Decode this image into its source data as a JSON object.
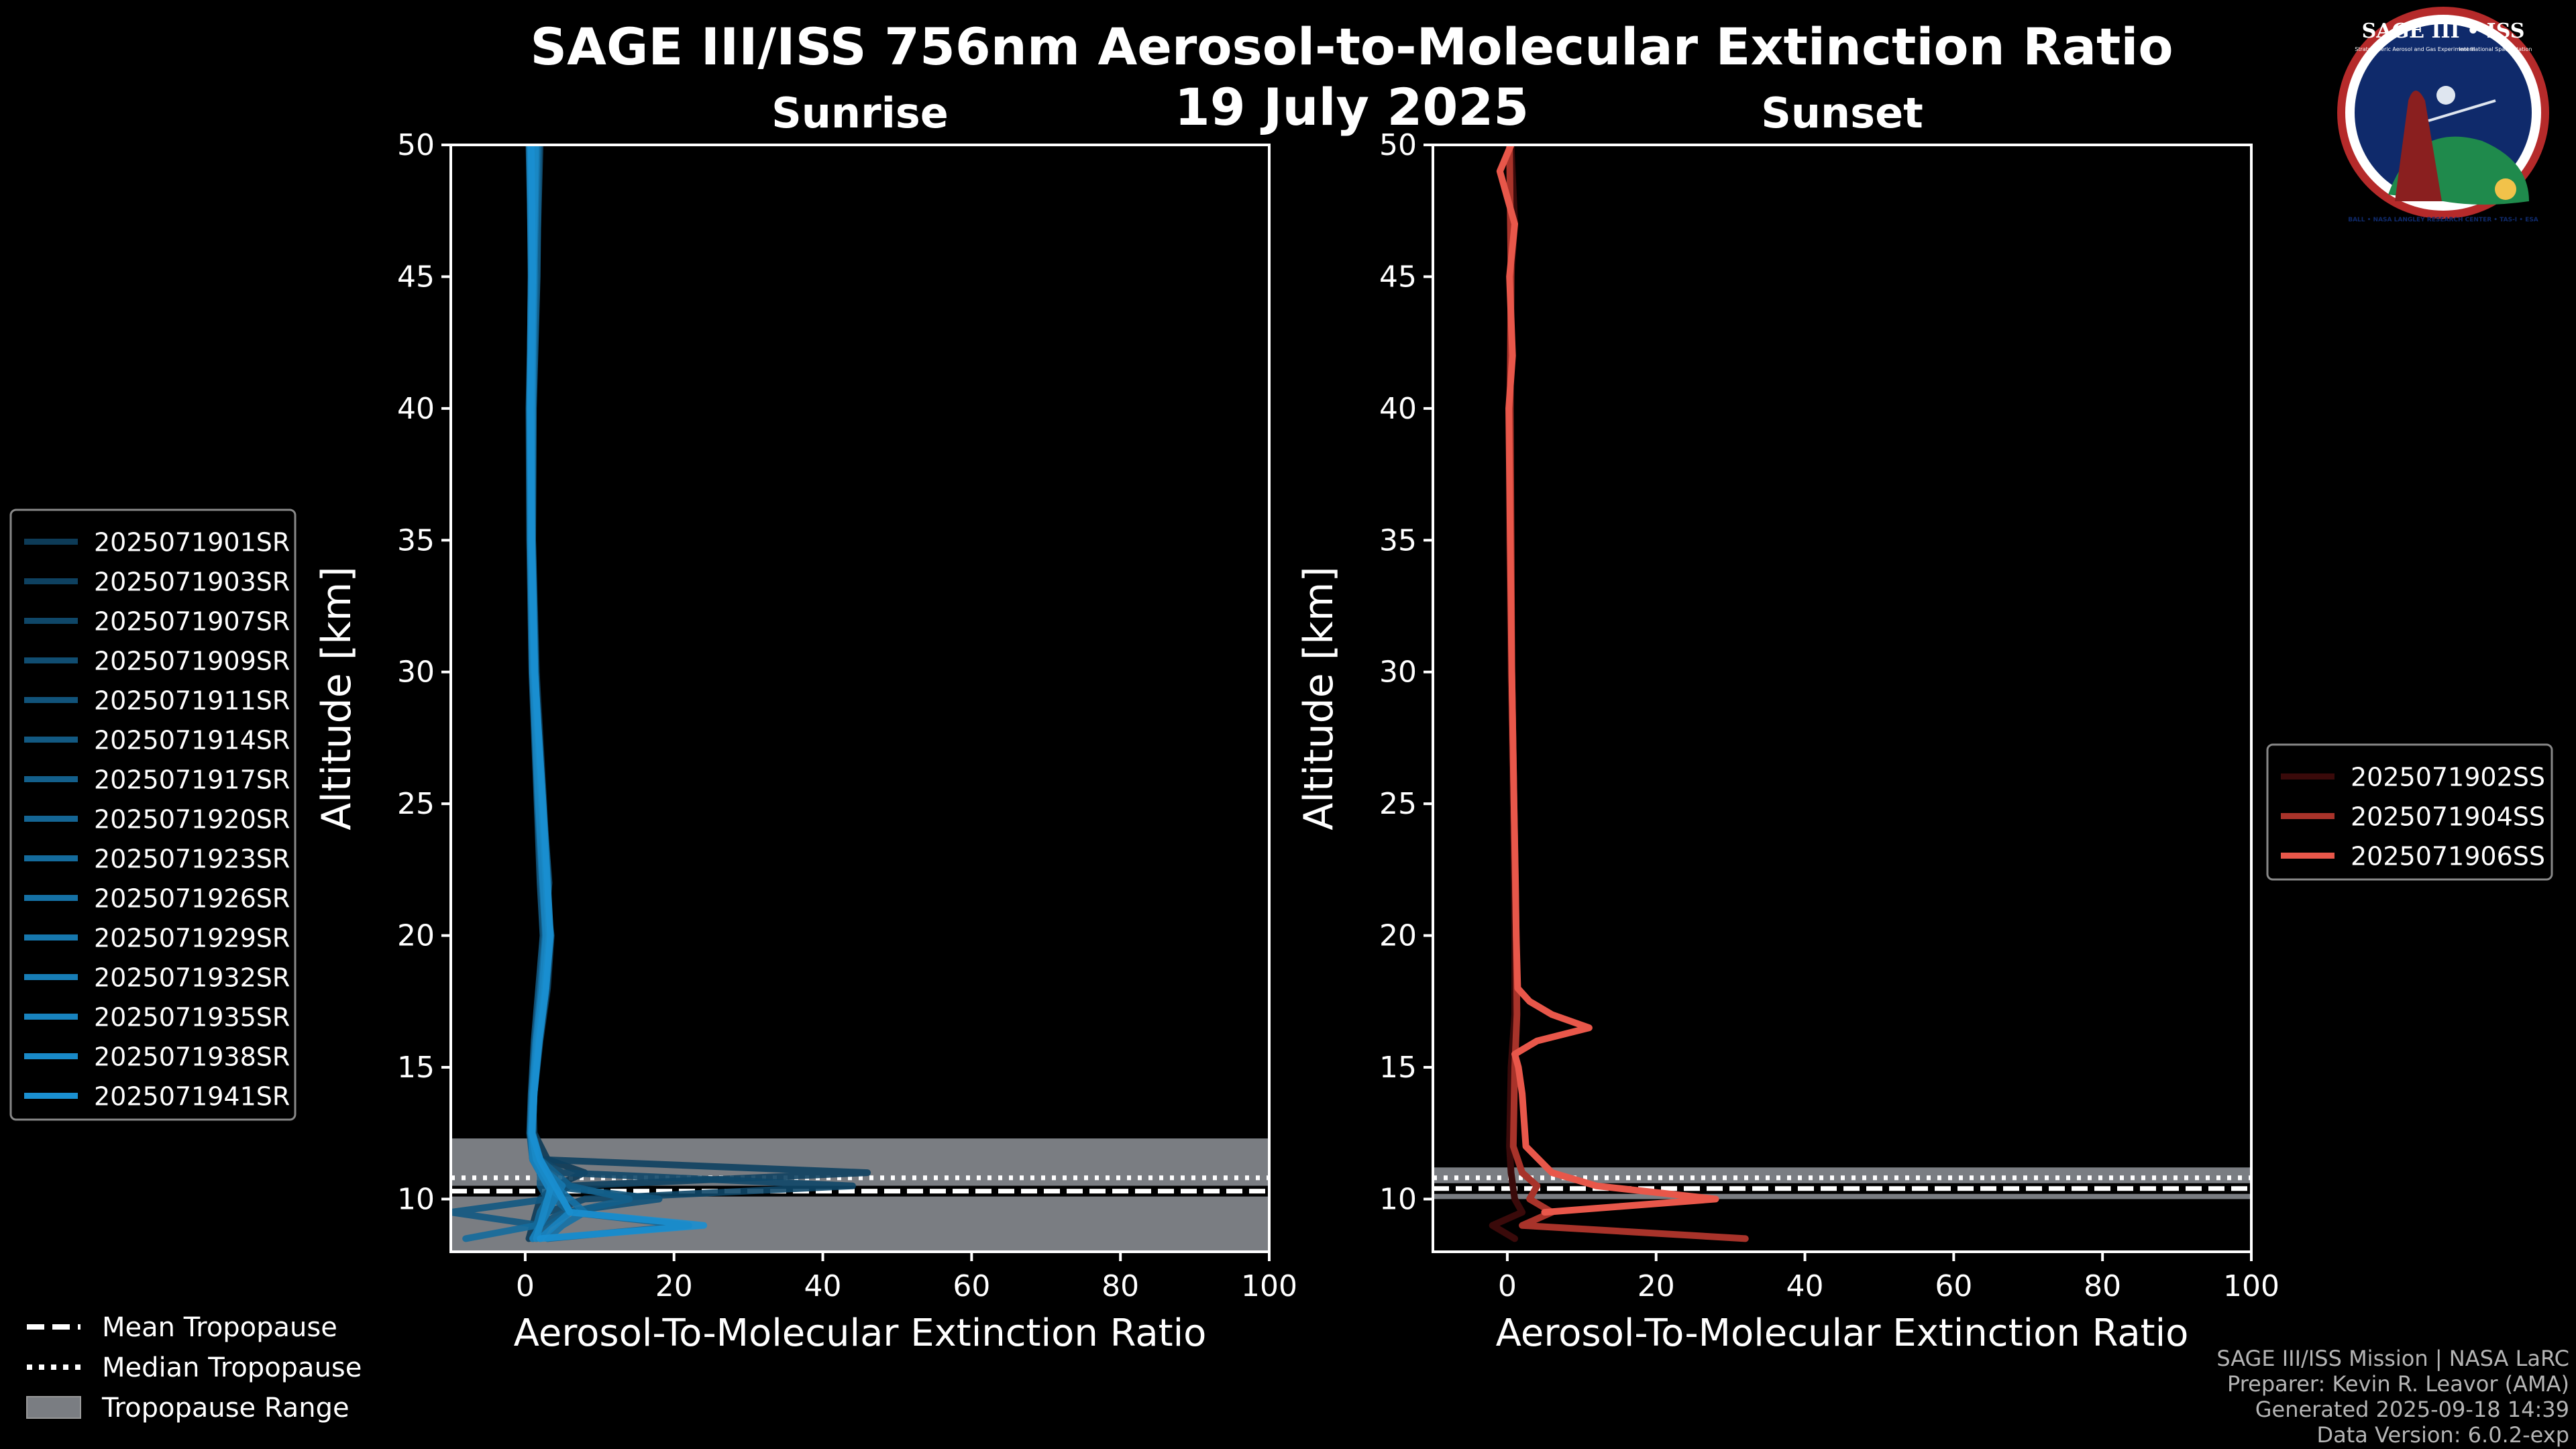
{
  "title_line1": "SAGE III/ISS 756nm Aerosol-to-Molecular Extinction Ratio",
  "title_line2": "19 July 2025",
  "logo": {
    "text_top": "SAGE III • ISS",
    "text_top_small": "Stratospheric Aerosol and Gas Experiment III",
    "text_side": "International Space Station",
    "ring_text": "BALL • NASA LANGLEY RESEARCH CENTER • TAS-I • ESA"
  },
  "footer": {
    "line1": "SAGE III/ISS Mission | NASA LaRC",
    "line2": "Preparer: Kevin R. Leavor (AMA)",
    "line3": "Generated 2025-09-18 14:39",
    "line4": "Data Version: 6.0.2-exp"
  },
  "bottom_legend": {
    "mean": "Mean Tropopause",
    "median": "Median Tropopause",
    "range": "Tropopause Range"
  },
  "colors": {
    "sunrise_dark": "#0d3b57",
    "sunrise_light": "#1a8fd0",
    "sunset": [
      "#3a0a0a",
      "#a8332a",
      "#e8574a"
    ],
    "tropopause_band": "#7a7d82"
  },
  "chart_data": [
    {
      "type": "line",
      "title": "Sunrise",
      "xlabel": "Aerosol-To-Molecular Extinction Ratio",
      "ylabel": "Altitude [km]",
      "xlim": [
        -10,
        100
      ],
      "ylim": [
        8,
        50
      ],
      "xticks": [
        0,
        20,
        40,
        60,
        80,
        100
      ],
      "yticks": [
        10,
        15,
        20,
        25,
        30,
        35,
        40,
        45,
        50
      ],
      "tropopause": {
        "mean": 10.3,
        "median": 10.5,
        "range": [
          8,
          12.3
        ]
      },
      "series": [
        {
          "name": "2025071901SR",
          "altitude": [
            50,
            45,
            40,
            35,
            30,
            25,
            22,
            20,
            18,
            16,
            14,
            12.5,
            11.5,
            11,
            10.5,
            10,
            9.5,
            9,
            8.5
          ],
          "ratio": [
            1.5,
            1.2,
            0.8,
            1.0,
            1.5,
            2.5,
            3.0,
            3.2,
            2.5,
            1.5,
            1.0,
            1.2,
            3,
            8,
            4,
            2,
            1.5,
            1,
            0.5
          ]
        },
        {
          "name": "2025071903SR",
          "altitude": [
            50,
            45,
            40,
            35,
            30,
            25,
            22,
            20,
            18,
            16,
            14,
            12.5,
            11.5,
            11,
            10.5,
            10,
            9.5,
            9,
            8.5
          ],
          "ratio": [
            0.8,
            1.0,
            0.7,
            0.9,
            1.2,
            2.0,
            2.5,
            3.5,
            3.0,
            2.0,
            1.2,
            1.0,
            2,
            46,
            6,
            3,
            2,
            1.5,
            1
          ]
        },
        {
          "name": "2025071907SR",
          "altitude": [
            50,
            45,
            40,
            35,
            30,
            25,
            22,
            20,
            18,
            16,
            14,
            12.5,
            11.5,
            11,
            10.5,
            10,
            9.5,
            9,
            8.5
          ],
          "ratio": [
            2.0,
            1.5,
            1.0,
            0.8,
            1.0,
            1.8,
            2.2,
            2.8,
            2.2,
            1.5,
            1.0,
            0.8,
            2,
            5,
            44,
            8,
            3,
            2,
            1
          ]
        },
        {
          "name": "2025071909SR",
          "altitude": [
            50,
            45,
            40,
            35,
            30,
            25,
            22,
            20,
            18,
            16,
            14,
            12.5,
            11.5,
            11,
            10.5,
            10,
            9.5,
            9,
            8.5
          ],
          "ratio": [
            1.0,
            0.8,
            0.6,
            0.8,
            1.0,
            2.2,
            2.8,
            3.0,
            2.8,
            1.8,
            1.2,
            1.0,
            1.5,
            3,
            5,
            4,
            3,
            2,
            1.5
          ]
        },
        {
          "name": "2025071911SR",
          "altitude": [
            50,
            45,
            40,
            35,
            30,
            25,
            22,
            20,
            18,
            16,
            14,
            12.5,
            11.5,
            11,
            10.5,
            10,
            9.5,
            9,
            8.5
          ],
          "ratio": [
            1.2,
            1.4,
            0.9,
            0.7,
            1.3,
            2.4,
            3.2,
            2.6,
            2.0,
            1.4,
            0.9,
            0.7,
            1,
            2,
            3,
            18,
            5,
            2,
            1
          ]
        },
        {
          "name": "2025071914SR",
          "altitude": [
            50,
            45,
            40,
            35,
            30,
            25,
            22,
            20,
            18,
            16,
            14,
            12.5,
            11.5,
            11,
            10.5,
            10,
            9.5,
            9,
            8.5
          ],
          "ratio": [
            0.5,
            0.9,
            0.5,
            0.6,
            0.9,
            1.6,
            2.0,
            2.4,
            1.8,
            1.2,
            0.8,
            0.6,
            1,
            2,
            2,
            3,
            -10,
            2,
            1
          ]
        },
        {
          "name": "2025071917SR",
          "altitude": [
            50,
            45,
            40,
            35,
            30,
            25,
            22,
            20,
            18,
            16,
            14,
            12.5,
            11.5,
            11,
            10.5,
            10,
            9.5,
            9,
            8.5
          ],
          "ratio": [
            1.8,
            1.6,
            1.1,
            1.0,
            1.4,
            2.0,
            2.6,
            3.4,
            2.6,
            1.6,
            1.1,
            0.9,
            2,
            4,
            6,
            14,
            6,
            3,
            2
          ]
        },
        {
          "name": "2025071920SR",
          "altitude": [
            50,
            45,
            40,
            35,
            30,
            25,
            22,
            20,
            18,
            16,
            14,
            12.5,
            11.5,
            11,
            10.5,
            10,
            9.5,
            9,
            8.5
          ],
          "ratio": [
            0.9,
            1.1,
            0.8,
            0.9,
            1.1,
            1.9,
            2.4,
            2.9,
            2.4,
            1.6,
            1.0,
            0.8,
            1,
            2,
            3,
            4,
            6,
            22,
            3
          ]
        },
        {
          "name": "2025071923SR",
          "altitude": [
            50,
            45,
            40,
            35,
            30,
            25,
            22,
            20,
            18,
            16,
            14,
            12.5,
            11.5,
            11,
            10.5,
            10,
            9.5,
            9,
            8.5
          ],
          "ratio": [
            1.3,
            1.0,
            0.7,
            0.8,
            1.2,
            2.1,
            2.7,
            3.1,
            2.5,
            1.7,
            1.1,
            0.9,
            2,
            3,
            4,
            3,
            2,
            1.5,
            -8
          ]
        },
        {
          "name": "2025071926SR",
          "altitude": [
            50,
            45,
            40,
            35,
            30,
            25,
            22,
            20,
            18,
            16,
            14,
            12.5,
            11.5,
            11,
            10.5,
            10,
            9.5,
            9,
            8.5
          ],
          "ratio": [
            0.7,
            1.3,
            0.9,
            0.7,
            1.0,
            1.7,
            2.3,
            2.7,
            2.1,
            1.4,
            0.9,
            0.7,
            1.5,
            2.5,
            4,
            6,
            8,
            5,
            3
          ]
        },
        {
          "name": "2025071929SR",
          "altitude": [
            50,
            45,
            40,
            35,
            30,
            25,
            22,
            20,
            18,
            16,
            14,
            12.5,
            11.5,
            11,
            10.5,
            10,
            9.5,
            9,
            8.5
          ],
          "ratio": [
            1.6,
            1.2,
            1.0,
            0.9,
            1.3,
            2.3,
            2.9,
            3.3,
            2.7,
            1.8,
            1.2,
            1.0,
            2,
            3,
            5,
            4,
            3,
            2,
            1
          ]
        },
        {
          "name": "2025071932SR",
          "altitude": [
            50,
            45,
            40,
            35,
            30,
            25,
            22,
            20,
            18,
            16,
            14,
            12.5,
            11.5,
            11,
            10.5,
            10,
            9.5,
            9,
            8.5
          ],
          "ratio": [
            1.1,
            0.9,
            0.8,
            0.8,
            1.1,
            2.0,
            2.6,
            3.0,
            2.4,
            1.6,
            1.1,
            0.9,
            1.5,
            2,
            3,
            4,
            3,
            2,
            1
          ]
        },
        {
          "name": "2025071935SR",
          "altitude": [
            50,
            45,
            40,
            35,
            30,
            25,
            22,
            20,
            18,
            16,
            14,
            12.5,
            11.5,
            11,
            10.5,
            10,
            9.5,
            9,
            8.5
          ],
          "ratio": [
            0.6,
            0.8,
            0.6,
            0.7,
            1.0,
            1.8,
            2.4,
            2.8,
            2.3,
            1.5,
            1.0,
            0.8,
            1,
            2,
            3,
            5,
            6,
            4,
            2
          ]
        },
        {
          "name": "2025071938SR",
          "altitude": [
            50,
            45,
            40,
            35,
            30,
            25,
            22,
            20,
            18,
            16,
            14,
            12.5,
            11.5,
            11,
            10.5,
            10,
            9.5,
            9,
            8.5
          ],
          "ratio": [
            1.4,
            1.1,
            0.9,
            0.8,
            1.2,
            2.2,
            2.8,
            3.2,
            2.6,
            1.7,
            1.1,
            0.9,
            1.5,
            2.5,
            3.5,
            3,
            2.5,
            2,
            1.5
          ]
        },
        {
          "name": "2025071941SR",
          "altitude": [
            50,
            45,
            40,
            35,
            30,
            25,
            22,
            20,
            18,
            16,
            14,
            12.5,
            11.5,
            11,
            10.5,
            10,
            9.5,
            9,
            8.5
          ],
          "ratio": [
            0.8,
            1.0,
            0.7,
            0.9,
            1.3,
            2.4,
            3.0,
            3.4,
            2.8,
            1.9,
            1.2,
            0.9,
            2,
            3,
            4,
            5,
            6,
            24,
            2
          ]
        }
      ]
    },
    {
      "type": "line",
      "title": "Sunset",
      "xlabel": "Aerosol-To-Molecular Extinction Ratio",
      "ylabel": "Altitude [km]",
      "xlim": [
        -10,
        100
      ],
      "ylim": [
        8,
        50
      ],
      "xticks": [
        0,
        20,
        40,
        60,
        80,
        100
      ],
      "yticks": [
        10,
        15,
        20,
        25,
        30,
        35,
        40,
        45,
        50
      ],
      "tropopause": {
        "mean": 10.4,
        "median": 10.5,
        "range": [
          10.0,
          11.2
        ]
      },
      "series": [
        {
          "name": "2025071902SS",
          "altitude": [
            50,
            47,
            45,
            40,
            35,
            30,
            25,
            20,
            17,
            15,
            12,
            11,
            10,
            9.5,
            9,
            8.5
          ],
          "ratio": [
            0.5,
            1.0,
            0.5,
            0.3,
            0.3,
            0.5,
            0.8,
            1.0,
            1.0,
            0.5,
            0.3,
            0.5,
            1.0,
            2.0,
            -2,
            1
          ]
        },
        {
          "name": "2025071904SS",
          "altitude": [
            50,
            45,
            40,
            35,
            30,
            25,
            20,
            17,
            15,
            12,
            11,
            10.5,
            10,
            9.5,
            9,
            8.5
          ],
          "ratio": [
            0.3,
            0.5,
            0.4,
            0.5,
            0.6,
            0.9,
            1.2,
            1.3,
            1.0,
            0.8,
            2,
            4,
            3,
            6,
            2,
            32
          ]
        },
        {
          "name": "2025071906SS",
          "altitude": [
            50,
            49,
            47,
            45,
            42,
            40,
            35,
            30,
            25,
            22,
            20,
            18,
            17.5,
            17,
            16.5,
            16,
            15.5,
            15,
            14,
            12,
            11,
            10.5,
            10,
            9.5
          ],
          "ratio": [
            0.5,
            -1,
            1,
            0.3,
            0.7,
            0.2,
            0.4,
            0.6,
            0.9,
            1.1,
            1.2,
            1.4,
            3,
            6,
            11,
            4,
            1,
            1.5,
            2,
            2.5,
            6,
            12,
            28,
            5
          ]
        }
      ]
    }
  ]
}
